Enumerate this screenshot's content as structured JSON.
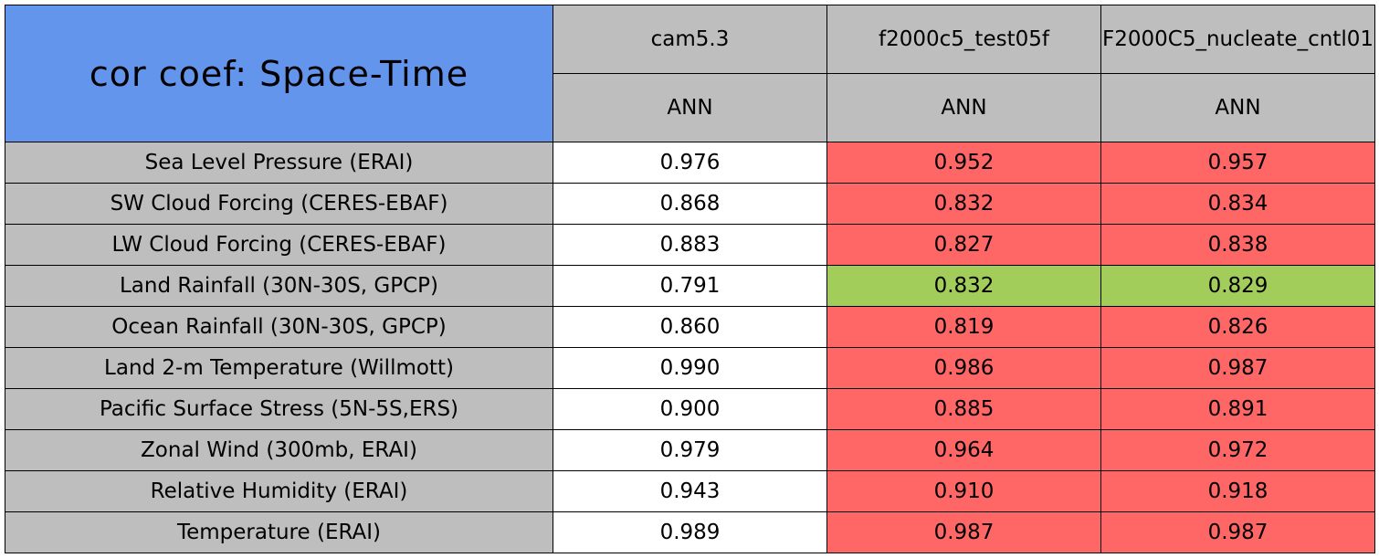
{
  "header": {
    "title": "cor coef: Space-Time",
    "columns": [
      {
        "name": "cam5.3",
        "season": "ANN"
      },
      {
        "name": "f2000c5_test05f",
        "season": "ANN"
      },
      {
        "name": "F2000C5_nucleate_cntl01",
        "season": "ANN"
      }
    ]
  },
  "colors": {
    "title": "#6495ed",
    "header": "#bebebe",
    "label": "#bebebe"
  },
  "rows": [
    {
      "label": "Sea Level Pressure (ERAI)",
      "values": [
        "0.976",
        "0.952",
        "0.957"
      ],
      "colors": [
        "#ffffff",
        "#ff6666",
        "#ff6666"
      ]
    },
    {
      "label": "SW Cloud Forcing (CERES-EBAF)",
      "values": [
        "0.868",
        "0.832",
        "0.834"
      ],
      "colors": [
        "#ffffff",
        "#ff6666",
        "#ff6666"
      ]
    },
    {
      "label": "LW Cloud Forcing (CERES-EBAF)",
      "values": [
        "0.883",
        "0.827",
        "0.838"
      ],
      "colors": [
        "#ffffff",
        "#ff6666",
        "#ff6666"
      ]
    },
    {
      "label": "Land Rainfall (30N-30S, GPCP)",
      "values": [
        "0.791",
        "0.832",
        "0.829"
      ],
      "colors": [
        "#ffffff",
        "#a2cd5a",
        "#a2cd5a"
      ]
    },
    {
      "label": "Ocean Rainfall (30N-30S, GPCP)",
      "values": [
        "0.860",
        "0.819",
        "0.826"
      ],
      "colors": [
        "#ffffff",
        "#ff6666",
        "#ff6666"
      ]
    },
    {
      "label": "Land 2-m Temperature (Willmott)",
      "values": [
        "0.990",
        "0.986",
        "0.987"
      ],
      "colors": [
        "#ffffff",
        "#ff6666",
        "#ff6666"
      ]
    },
    {
      "label": "Pacific Surface Stress (5N-5S,ERS)",
      "values": [
        "0.900",
        "0.885",
        "0.891"
      ],
      "colors": [
        "#ffffff",
        "#ff6666",
        "#ff6666"
      ]
    },
    {
      "label": "Zonal Wind (300mb, ERAI)",
      "values": [
        "0.979",
        "0.964",
        "0.972"
      ],
      "colors": [
        "#ffffff",
        "#ff6666",
        "#ff6666"
      ]
    },
    {
      "label": "Relative Humidity (ERAI)",
      "values": [
        "0.943",
        "0.910",
        "0.918"
      ],
      "colors": [
        "#ffffff",
        "#ff6666",
        "#ff6666"
      ]
    },
    {
      "label": "Temperature (ERAI)",
      "values": [
        "0.989",
        "0.987",
        "0.987"
      ],
      "colors": [
        "#ffffff",
        "#ff6666",
        "#ff6666"
      ]
    }
  ]
}
